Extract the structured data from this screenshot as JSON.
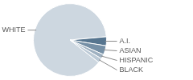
{
  "chart_data": {
    "type": "pie",
    "categories": [
      "WHITE",
      "A.I.",
      "ASIAN",
      "HISPANIC",
      "BLACK"
    ],
    "values": [
      88,
      4,
      4,
      2,
      2
    ],
    "colors": [
      "#cdd7e0",
      "#56758f",
      "#7690a6",
      "#9fb1c1",
      "#bccad6"
    ],
    "legend": false,
    "data_labels": false
  }
}
